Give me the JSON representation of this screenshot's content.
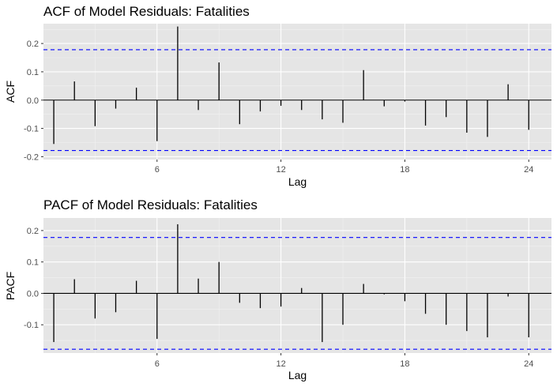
{
  "chart_data": [
    {
      "type": "bar",
      "subtype": "correlogram",
      "title": "ACF of Model Residuals: Fatalities",
      "xlabel": "Lag",
      "ylabel": "ACF",
      "xlim": [
        0.5,
        25.1
      ],
      "ylim": [
        -0.21,
        0.27
      ],
      "xticks": [
        6,
        12,
        18,
        24
      ],
      "yticks": [
        -0.2,
        -0.1,
        0.0,
        0.1,
        0.2
      ],
      "ytick_labels": [
        "-0.2",
        "-0.1",
        "0.0",
        "0.1",
        "0.2"
      ],
      "confidence_bound": 0.178,
      "lags": [
        1,
        2,
        3,
        4,
        5,
        6,
        7,
        8,
        9,
        10,
        11,
        12,
        13,
        14,
        15,
        16,
        17,
        18,
        19,
        20,
        21,
        22,
        23,
        24
      ],
      "values": [
        -0.155,
        0.066,
        -0.092,
        -0.03,
        0.044,
        -0.145,
        0.26,
        -0.035,
        0.133,
        -0.085,
        -0.04,
        -0.02,
        -0.035,
        -0.068,
        -0.08,
        0.106,
        -0.022,
        -0.005,
        -0.09,
        -0.06,
        -0.115,
        -0.13,
        0.056,
        -0.105
      ],
      "grid": true
    },
    {
      "type": "bar",
      "subtype": "correlogram",
      "title": "PACF of Model Residuals: Fatalities",
      "xlabel": "Lag",
      "ylabel": "PACF",
      "xlim": [
        0.5,
        25.1
      ],
      "ylim": [
        -0.19,
        0.24
      ],
      "xticks": [
        6,
        12,
        18,
        24
      ],
      "yticks": [
        -0.1,
        0.0,
        0.1,
        0.2
      ],
      "ytick_labels": [
        "-0.1",
        "0.0",
        "0.1",
        "0.2"
      ],
      "confidence_bound": 0.178,
      "lags": [
        1,
        2,
        3,
        4,
        5,
        6,
        7,
        8,
        9,
        10,
        11,
        12,
        13,
        14,
        15,
        16,
        17,
        18,
        19,
        20,
        21,
        22,
        23,
        24
      ],
      "values": [
        -0.155,
        0.045,
        -0.08,
        -0.06,
        0.04,
        -0.145,
        0.22,
        0.047,
        0.1,
        -0.03,
        -0.047,
        -0.042,
        0.017,
        -0.155,
        -0.1,
        0.03,
        -0.003,
        -0.025,
        -0.065,
        -0.1,
        -0.12,
        -0.14,
        -0.01,
        -0.14
      ],
      "grid": true
    }
  ],
  "colors": {
    "panel_background": "#e5e5e5",
    "major_grid": "#ffffff",
    "minor_grid": "#f2f2f2",
    "bars": "#000000",
    "confidence_lines": "#0000ff",
    "tick_text": "#4d4d4d"
  }
}
